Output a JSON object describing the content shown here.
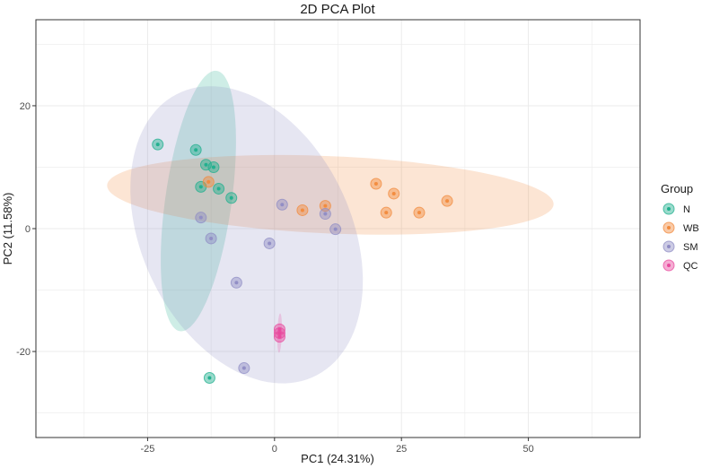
{
  "chart_data": {
    "type": "scatter",
    "title": "2D PCA Plot",
    "xlabel": "PC1 (24.31%)",
    "ylabel": "PC2 (11.58%)",
    "xlim": [
      -47,
      72
    ],
    "ylim": [
      -34,
      34
    ],
    "x_ticks": [
      -25,
      0,
      25,
      50
    ],
    "x_tick_labels": [
      "-25",
      "0",
      "25",
      "50"
    ],
    "y_ticks": [
      -20,
      0,
      20
    ],
    "y_tick_labels": [
      "-20",
      "0",
      "20"
    ],
    "grid": true,
    "legend_title": "Group",
    "legend_position": "right",
    "series": [
      {
        "name": "N",
        "color": "#1faf8d",
        "points": [
          [
            -23,
            13.7
          ],
          [
            -15.5,
            12.8
          ],
          [
            -13.5,
            10.4
          ],
          [
            -12,
            10.0
          ],
          [
            -14.5,
            6.8
          ],
          [
            -11,
            6.5
          ],
          [
            -8.5,
            5.0
          ],
          [
            -12.8,
            -24.3
          ]
        ],
        "ellipse": {
          "cx": -15,
          "cy": 4.5,
          "rx": 21.5,
          "ry": 6.5,
          "angle_deg": 80
        }
      },
      {
        "name": "WB",
        "color": "#f28a3c",
        "points": [
          [
            -13,
            7.6
          ],
          [
            20,
            7.3
          ],
          [
            23.5,
            5.7
          ],
          [
            34,
            4.5
          ],
          [
            28.5,
            2.6
          ],
          [
            22,
            2.6
          ],
          [
            10,
            3.7
          ],
          [
            5.5,
            3.0
          ]
        ],
        "ellipse": {
          "cx": 11,
          "cy": 5.5,
          "rx": 44,
          "ry": 6.3,
          "angle_deg": -2
        }
      },
      {
        "name": "SM",
        "color": "#8f8cc4",
        "points": [
          [
            1.5,
            3.9
          ],
          [
            10,
            2.4
          ],
          [
            12,
            -0.1
          ],
          [
            -14.5,
            1.8
          ],
          [
            -12.5,
            -1.6
          ],
          [
            -1,
            -2.4
          ],
          [
            -7.5,
            -8.8
          ],
          [
            -6,
            -22.7
          ]
        ],
        "ellipse": {
          "cx": -5.5,
          "cy": -1,
          "rx": 27,
          "ry": 19.5,
          "angle_deg": -50
        }
      },
      {
        "name": "QC",
        "color": "#e84a9e",
        "points": [
          [
            1,
            -16.4
          ],
          [
            1,
            -17.0
          ],
          [
            1,
            -17.6
          ]
        ],
        "ellipse": {
          "cx": 1,
          "cy": -17,
          "rx": 3.2,
          "ry": 0.45,
          "angle_deg": 88
        }
      }
    ]
  }
}
